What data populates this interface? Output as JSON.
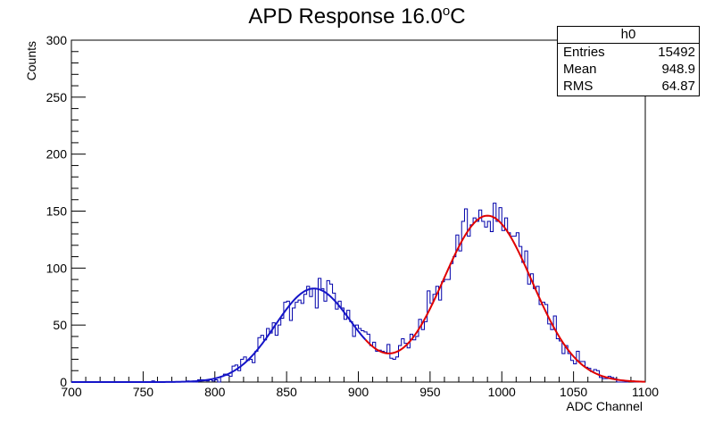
{
  "chart_data": {
    "type": "histogram",
    "title": "APD Response 16.0",
    "title_superscript": "o",
    "title_suffix": "C",
    "xlabel": "ADC Channel",
    "ylabel": "Counts",
    "xlim": [
      700,
      1100
    ],
    "ylim": [
      0,
      300
    ],
    "xticks": [
      "700",
      "750",
      "800",
      "850",
      "900",
      "950",
      "1000",
      "1050",
      "1100"
    ],
    "yticks": [
      "0",
      "50",
      "100",
      "150",
      "200",
      "250",
      "300"
    ],
    "bin_width": 2,
    "histogram_color": "#0000aa",
    "fits": [
      {
        "function": "gaussian",
        "amplitude": 82,
        "mean": 869,
        "sigma": 27,
        "range": [
          700,
          905
        ],
        "color": "#1515c8"
      },
      {
        "function": "gaussian",
        "amplitude": 146,
        "mean": 990,
        "sigma": 31,
        "range": [
          905,
          1100
        ],
        "color": "#e00000"
      }
    ],
    "grid": false,
    "legend": "none"
  },
  "stats_box": {
    "name": "h0",
    "rows": [
      {
        "label": "Entries",
        "value": "15492"
      },
      {
        "label": "Mean",
        "value": "948.9"
      },
      {
        "label": "RMS",
        "value": "64.87"
      }
    ]
  }
}
